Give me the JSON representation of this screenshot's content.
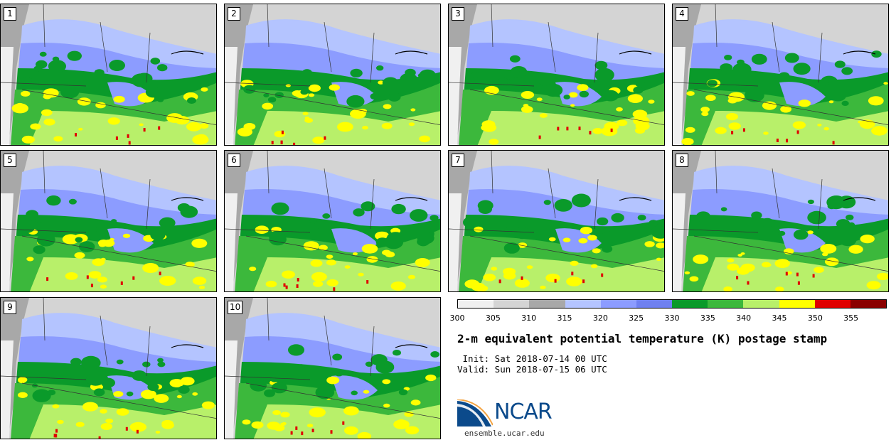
{
  "panels": [
    "1",
    "2",
    "3",
    "4",
    "5",
    "6",
    "7",
    "8",
    "9",
    "10"
  ],
  "colorbar": {
    "labels": [
      "300",
      "305",
      "310",
      "315",
      "320",
      "325",
      "330",
      "335",
      "340",
      "345",
      "350",
      "355"
    ],
    "colors": [
      "#f0f0f0",
      "#d4d4d4",
      "#a8a8a8",
      "#b4c4ff",
      "#8c9cff",
      "#6f80f0",
      "#0a9a2a",
      "#3cb83c",
      "#b8f06a",
      "#ffff00",
      "#e00000",
      "#8a0000"
    ]
  },
  "title": "2-m equivalent potential temperature (K) postage stamp",
  "init": " Init: Sat 2018-07-14 00 UTC",
  "valid": "Valid: Sun 2018-07-15 06 UTC",
  "logo": {
    "name": "NCAR",
    "url": "ensemble.ucar.edu"
  }
}
